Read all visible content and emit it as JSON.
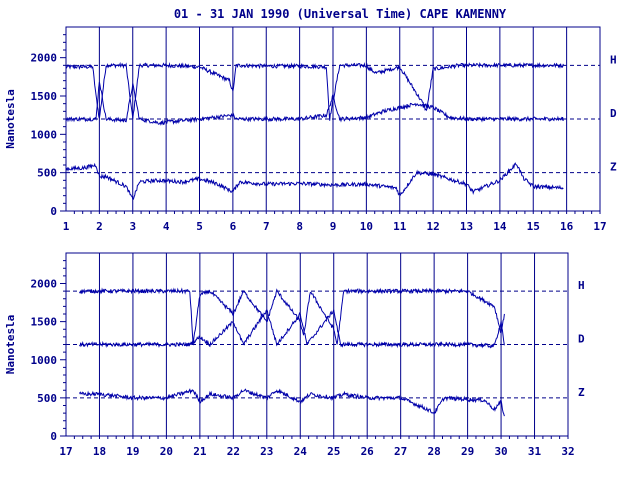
{
  "title": "01 - 31 JAN 1990 (Universal Time) CAPE KAMENNY",
  "colors": {
    "frame": "#00008B",
    "trace": "#0000AA",
    "text": "#00008B",
    "background": "#ffffff"
  },
  "chart_data": [
    {
      "type": "line",
      "title": "01 - 31 JAN 1990 (Universal Time) CAPE KAMENNY",
      "ylabel": "Nanotesla",
      "xlim": [
        1,
        17
      ],
      "ylim": [
        0,
        2400
      ],
      "x_ticks": [
        "1",
        "2",
        "3",
        "4",
        "5",
        "6",
        "7",
        "8",
        "9",
        "10",
        "11",
        "12",
        "13",
        "14",
        "15",
        "16",
        "17"
      ],
      "y_ticks": [
        "0",
        "500",
        "1000",
        "1500",
        "2000"
      ],
      "grid": "vertical lines at each day",
      "reference_lines": [
        1900,
        1200,
        500
      ],
      "series": [
        {
          "name": "H",
          "baseline": 1900,
          "x": [
            1,
            1.8,
            1.9,
            2,
            2.2,
            2.8,
            3,
            3.2,
            4,
            5,
            5.9,
            6,
            6.1,
            7,
            8,
            8.8,
            8.9,
            9.2,
            10,
            10.1,
            10.3,
            11,
            11.7,
            11.8,
            12,
            12.8,
            13,
            14,
            15,
            15.9
          ],
          "values": [
            1880,
            1880,
            1500,
            1200,
            1900,
            1900,
            1200,
            1900,
            1900,
            1880,
            1700,
            1550,
            1900,
            1890,
            1890,
            1880,
            1200,
            1900,
            1900,
            1850,
            1800,
            1880,
            1400,
            1300,
            1850,
            1900,
            1900,
            1900,
            1900,
            1900
          ]
        },
        {
          "name": "D",
          "baseline": 1200,
          "x": [
            1,
            1.9,
            2,
            2.2,
            2.8,
            3,
            3.2,
            3.8,
            5,
            6,
            6.1,
            7,
            8,
            8.8,
            9,
            9.2,
            10,
            10.5,
            11,
            11.5,
            12,
            12.5,
            13,
            14,
            15,
            15.9
          ],
          "values": [
            1200,
            1200,
            1700,
            1200,
            1180,
            1650,
            1200,
            1150,
            1200,
            1250,
            1200,
            1200,
            1200,
            1250,
            1500,
            1200,
            1220,
            1300,
            1350,
            1400,
            1350,
            1220,
            1200,
            1200,
            1200,
            1200
          ]
        },
        {
          "name": "Z",
          "baseline": 500,
          "x": [
            1,
            1.5,
            1.9,
            2,
            2.2,
            2.8,
            3,
            3.2,
            3.8,
            4.5,
            5,
            5.5,
            6,
            6.2,
            7,
            8,
            9,
            10,
            10.9,
            11,
            11.5,
            12,
            13,
            13.2,
            14,
            14.5,
            14.7,
            15,
            15.9
          ],
          "values": [
            550,
            560,
            600,
            450,
            450,
            320,
            150,
            380,
            400,
            380,
            420,
            360,
            250,
            380,
            350,
            360,
            340,
            350,
            300,
            200,
            500,
            480,
            350,
            250,
            400,
            620,
            430,
            320,
            300
          ]
        }
      ]
    },
    {
      "type": "line",
      "ylabel": "Nanotesla",
      "xlim": [
        17,
        32
      ],
      "ylim": [
        0,
        2400
      ],
      "x_ticks": [
        "17",
        "18",
        "19",
        "20",
        "21",
        "22",
        "23",
        "24",
        "25",
        "26",
        "27",
        "28",
        "29",
        "30",
        "31",
        "32"
      ],
      "y_ticks": [
        "0",
        "500",
        "1000",
        "1500",
        "2000"
      ],
      "grid": "vertical lines at each day",
      "reference_lines": [
        1900,
        1200,
        500
      ],
      "series": [
        {
          "name": "H",
          "baseline": 1900,
          "x": [
            17.4,
            18,
            19,
            20,
            20.7,
            20.8,
            21,
            21.3,
            22,
            22.3,
            23,
            23.3,
            24,
            24.1,
            24.3,
            25,
            25.1,
            25.3,
            26,
            27,
            28,
            29,
            29.8,
            30,
            30.1
          ],
          "values": [
            1900,
            1900,
            1900,
            1900,
            1900,
            1200,
            1850,
            1900,
            1600,
            1900,
            1500,
            1900,
            1500,
            1300,
            1900,
            1400,
            1200,
            1900,
            1900,
            1900,
            1900,
            1900,
            1700,
            1350,
            1600
          ]
        },
        {
          "name": "D",
          "baseline": 1200,
          "x": [
            17.4,
            18,
            19,
            20,
            20.7,
            21,
            21.3,
            22,
            22.3,
            23,
            23.3,
            24,
            24.2,
            25,
            25.2,
            26,
            27,
            28,
            29,
            29.8,
            30,
            30.1
          ],
          "values": [
            1200,
            1200,
            1200,
            1200,
            1200,
            1300,
            1200,
            1500,
            1200,
            1650,
            1200,
            1600,
            1200,
            1650,
            1200,
            1200,
            1200,
            1200,
            1200,
            1180,
            1500,
            1200
          ]
        },
        {
          "name": "Z",
          "baseline": 500,
          "x": [
            17.4,
            18,
            19,
            20,
            20.8,
            21,
            21.3,
            22,
            22.3,
            23,
            23.3,
            24,
            24.3,
            25,
            25.3,
            26,
            27,
            27.8,
            28,
            28.3,
            29,
            29.5,
            29.8,
            30,
            30.1
          ],
          "values": [
            550,
            550,
            500,
            500,
            600,
            450,
            550,
            500,
            600,
            500,
            600,
            450,
            550,
            500,
            550,
            500,
            500,
            350,
            300,
            500,
            480,
            470,
            350,
            450,
            250
          ]
        }
      ]
    }
  ],
  "panel1": {
    "x_ticks": [
      "1",
      "2",
      "3",
      "4",
      "5",
      "6",
      "7",
      "8",
      "9",
      "10",
      "11",
      "12",
      "13",
      "14",
      "15",
      "16",
      "17"
    ],
    "y_ticks": [
      "0",
      "500",
      "1000",
      "1500",
      "2000"
    ],
    "ylabel": "Nanotesla",
    "comp_labels": [
      "H",
      "D",
      "Z"
    ]
  },
  "panel2": {
    "x_ticks": [
      "17",
      "18",
      "19",
      "20",
      "21",
      "22",
      "23",
      "24",
      "25",
      "26",
      "27",
      "28",
      "29",
      "30",
      "31",
      "32"
    ],
    "y_ticks": [
      "0",
      "500",
      "1000",
      "1500",
      "2000"
    ],
    "ylabel": "Nanotesla",
    "comp_labels": [
      "H",
      "D",
      "Z"
    ]
  }
}
